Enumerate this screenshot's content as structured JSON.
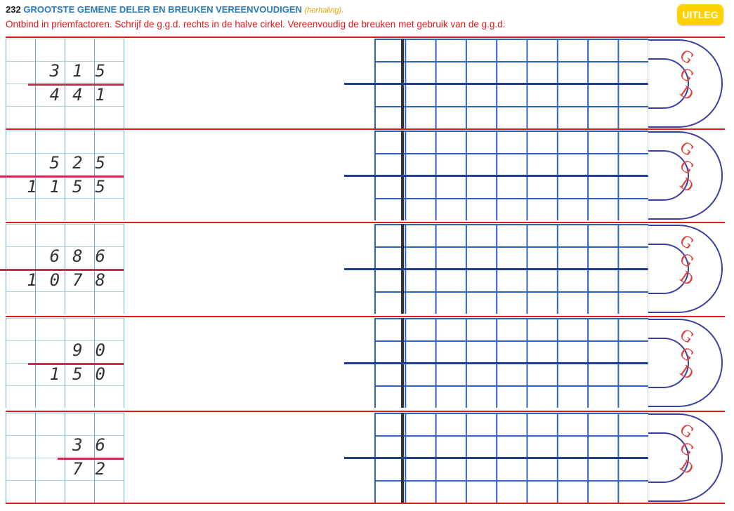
{
  "header": {
    "number": "232",
    "title": "GROOTSTE GEMENE DELER EN BREUKEN VEREENVOUDIGEN",
    "subtitle": "(herhaling).",
    "instruction": "Ontbind in priemfactoren. Schrijf de g.g.d. rechts in de halve cirkel. Vereenvoudig de breuken met gebruik van de g.g.d."
  },
  "uitleg_label": "UITLEG",
  "ggd_label": "GGD",
  "exercises": [
    {
      "numerator": "315",
      "denominator": "441"
    },
    {
      "numerator": "525",
      "denominator": "1155"
    },
    {
      "numerator": "686",
      "denominator": "1078"
    },
    {
      "numerator": "90",
      "denominator": "150"
    },
    {
      "numerator": "36",
      "denominator": "72"
    }
  ],
  "colors": {
    "accent_red": "#e31a1a",
    "grid_blue": "#2f62c8",
    "title_blue": "#2a7bbd",
    "button_yellow": "#ffd200"
  }
}
